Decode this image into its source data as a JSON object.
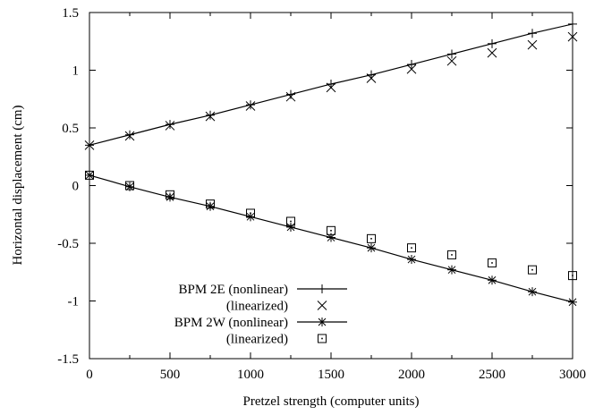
{
  "chart_data": {
    "type": "line",
    "title": "",
    "xlabel": "Pretzel strength (computer units)",
    "ylabel": "Horizontal displacement (cm)",
    "xlim": [
      0,
      3000
    ],
    "ylim": [
      -1.5,
      1.5
    ],
    "x_ticks": [
      0,
      500,
      1000,
      1500,
      2000,
      2500,
      3000
    ],
    "x_tick_labels": [
      "0",
      "500",
      "1000",
      "1500",
      "2000",
      "2500",
      "3000"
    ],
    "y_ticks": [
      -1.5,
      -1,
      -0.5,
      0,
      0.5,
      1,
      1.5
    ],
    "y_tick_labels": [
      "-1.5",
      "-1",
      "-0.5",
      "0",
      "0.5",
      "1",
      "1.5"
    ],
    "grid": false,
    "legend_position": "bottom-left",
    "series": [
      {
        "name": "BPM 2E (nonlinear)",
        "style": "line-points",
        "marker": "plus",
        "x": [
          0,
          250,
          500,
          750,
          1000,
          1250,
          1500,
          1750,
          2000,
          2250,
          2500,
          2750,
          3000
        ],
        "values": [
          0.35,
          0.44,
          0.53,
          0.61,
          0.7,
          0.79,
          0.88,
          0.96,
          1.05,
          1.14,
          1.23,
          1.32,
          1.4
        ]
      },
      {
        "name": "(linearized)",
        "style": "points",
        "marker": "cross",
        "x": [
          0,
          250,
          500,
          750,
          1000,
          1250,
          1500,
          1750,
          2000,
          2250,
          2500,
          2750,
          3000
        ],
        "values": [
          0.35,
          0.43,
          0.52,
          0.6,
          0.69,
          0.77,
          0.85,
          0.93,
          1.01,
          1.08,
          1.15,
          1.22,
          1.29
        ]
      },
      {
        "name": "BPM 2W (nonlinear)",
        "style": "line-points",
        "marker": "star",
        "x": [
          0,
          250,
          500,
          750,
          1000,
          1250,
          1500,
          1750,
          2000,
          2250,
          2500,
          2750,
          3000
        ],
        "values": [
          0.09,
          -0.01,
          -0.1,
          -0.18,
          -0.27,
          -0.36,
          -0.45,
          -0.54,
          -0.64,
          -0.73,
          -0.82,
          -0.92,
          -1.01
        ]
      },
      {
        "name": "(linearized)",
        "style": "points",
        "marker": "square",
        "x": [
          0,
          250,
          500,
          750,
          1000,
          1250,
          1500,
          1750,
          2000,
          2250,
          2500,
          2750,
          3000
        ],
        "values": [
          0.09,
          0.0,
          -0.08,
          -0.16,
          -0.24,
          -0.31,
          -0.39,
          -0.46,
          -0.54,
          -0.6,
          -0.67,
          -0.73,
          -0.78
        ]
      }
    ]
  }
}
